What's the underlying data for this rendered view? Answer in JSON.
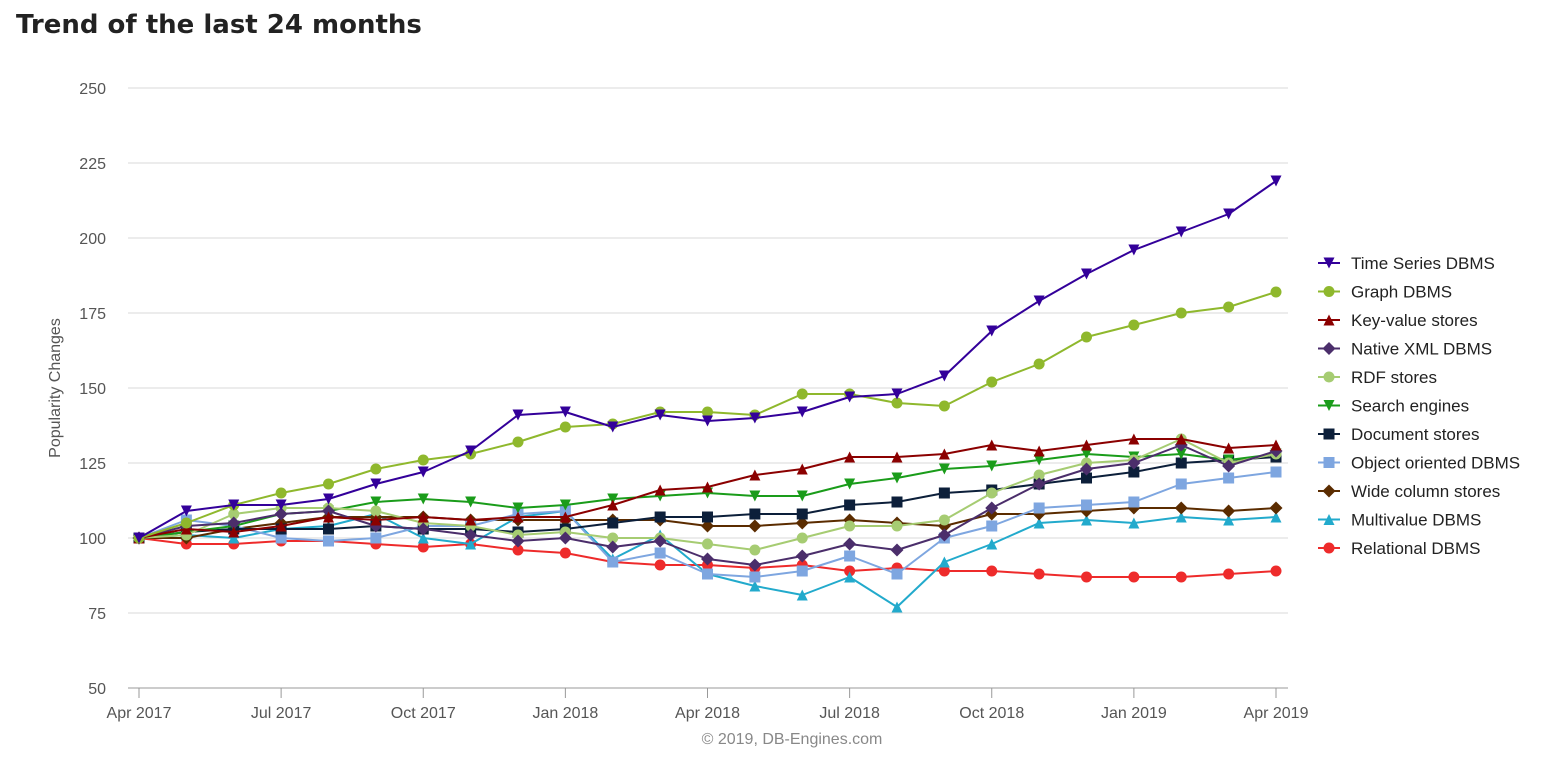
{
  "title": "Trend of the last 24 months",
  "credits": "© 2019, DB-Engines.com",
  "chart_data": {
    "type": "line",
    "title": "Trend of the last 24 months",
    "ylabel": "Popularity Changes",
    "xlabel": "",
    "ylim": [
      50,
      250
    ],
    "y_ticks": [
      50,
      75,
      100,
      125,
      150,
      175,
      200,
      225,
      250
    ],
    "x_tick_labels": [
      {
        "index": 0,
        "label": "Apr 2017"
      },
      {
        "index": 3,
        "label": "Jul 2017"
      },
      {
        "index": 6,
        "label": "Oct 2017"
      },
      {
        "index": 9,
        "label": "Jan 2018"
      },
      {
        "index": 12,
        "label": "Apr 2018"
      },
      {
        "index": 15,
        "label": "Jul 2018"
      },
      {
        "index": 18,
        "label": "Oct 2018"
      },
      {
        "index": 21,
        "label": "Jan 2019"
      },
      {
        "index": 24,
        "label": "Apr 2019"
      }
    ],
    "x": [
      "Apr 2017",
      "May 2017",
      "Jun 2017",
      "Jul 2017",
      "Aug 2017",
      "Sep 2017",
      "Oct 2017",
      "Nov 2017",
      "Dec 2017",
      "Jan 2018",
      "Feb 2018",
      "Mar 2018",
      "Apr 2018",
      "May 2018",
      "Jun 2018",
      "Jul 2018",
      "Aug 2018",
      "Sep 2018",
      "Oct 2018",
      "Nov 2018",
      "Dec 2018",
      "Jan 2019",
      "Feb 2019",
      "Mar 2019",
      "Apr 2019"
    ],
    "grid": true,
    "legend_position": "right",
    "series": [
      {
        "name": "Time Series DBMS",
        "color": "#33009a",
        "marker": "triangle-down",
        "values": [
          100,
          109,
          111,
          111,
          113,
          118,
          122,
          129,
          141,
          142,
          137,
          141,
          139,
          140,
          142,
          147,
          148,
          154,
          169,
          179,
          188,
          196,
          202,
          208,
          219
        ]
      },
      {
        "name": "Graph DBMS",
        "color": "#8fb82d",
        "marker": "circle",
        "values": [
          100,
          105,
          111,
          115,
          118,
          123,
          126,
          128,
          132,
          137,
          138,
          142,
          142,
          141,
          148,
          148,
          145,
          144,
          152,
          158,
          167,
          171,
          175,
          177,
          182
        ]
      },
      {
        "name": "Key-value stores",
        "color": "#8b0000",
        "marker": "triangle-up",
        "values": [
          100,
          103,
          102,
          104,
          107,
          106,
          107,
          106,
          107,
          107,
          111,
          116,
          117,
          121,
          123,
          127,
          127,
          128,
          131,
          129,
          131,
          133,
          133,
          130,
          131
        ]
      },
      {
        "name": "Native XML DBMS",
        "color": "#4b2e6b",
        "marker": "diamond",
        "values": [
          100,
          104,
          105,
          108,
          109,
          104,
          103,
          101,
          99,
          100,
          97,
          99,
          93,
          91,
          94,
          98,
          96,
          101,
          110,
          118,
          123,
          125,
          131,
          124,
          129
        ]
      },
      {
        "name": "RDF stores",
        "color": "#a6cc72",
        "marker": "circle",
        "values": [
          100,
          101,
          108,
          110,
          110,
          109,
          105,
          104,
          101,
          102,
          100,
          100,
          98,
          96,
          100,
          104,
          104,
          106,
          115,
          121,
          125,
          126,
          133,
          125,
          128
        ]
      },
      {
        "name": "Search engines",
        "color": "#1a9c1a",
        "marker": "triangle-down",
        "values": [
          100,
          102,
          104,
          108,
          109,
          112,
          113,
          112,
          110,
          111,
          113,
          114,
          115,
          114,
          114,
          118,
          120,
          123,
          124,
          126,
          128,
          127,
          128,
          126,
          128
        ]
      },
      {
        "name": "Document stores",
        "color": "#0c1f3a",
        "marker": "square",
        "values": [
          100,
          102,
          103,
          103,
          103,
          104,
          103,
          103,
          102,
          103,
          105,
          107,
          107,
          108,
          108,
          111,
          112,
          115,
          116,
          118,
          120,
          122,
          125,
          126,
          127
        ]
      },
      {
        "name": "Object oriented DBMS",
        "color": "#7ea6e0",
        "marker": "square",
        "values": [
          100,
          106,
          104,
          100,
          99,
          100,
          104,
          104,
          108,
          109,
          92,
          95,
          88,
          87,
          89,
          94,
          88,
          100,
          104,
          110,
          111,
          112,
          118,
          120,
          122
        ]
      },
      {
        "name": "Wide column stores",
        "color": "#5b2c00",
        "marker": "diamond",
        "values": [
          100,
          100,
          103,
          105,
          107,
          107,
          107,
          106,
          106,
          106,
          106,
          106,
          104,
          104,
          105,
          106,
          105,
          104,
          108,
          108,
          109,
          110,
          110,
          109,
          110
        ]
      },
      {
        "name": "Multivalue DBMS",
        "color": "#22aacc",
        "marker": "triangle-up",
        "values": [
          100,
          101,
          100,
          103,
          104,
          108,
          100,
          98,
          107,
          109,
          93,
          101,
          88,
          84,
          81,
          87,
          77,
          92,
          98,
          105,
          106,
          105,
          107,
          106,
          107
        ]
      },
      {
        "name": "Relational DBMS",
        "color": "#ee2b2b",
        "marker": "circle",
        "values": [
          100,
          98,
          98,
          99,
          99,
          98,
          97,
          98,
          96,
          95,
          92,
          91,
          91,
          90,
          91,
          89,
          90,
          89,
          89,
          88,
          87,
          87,
          87,
          88,
          89
        ]
      }
    ]
  }
}
